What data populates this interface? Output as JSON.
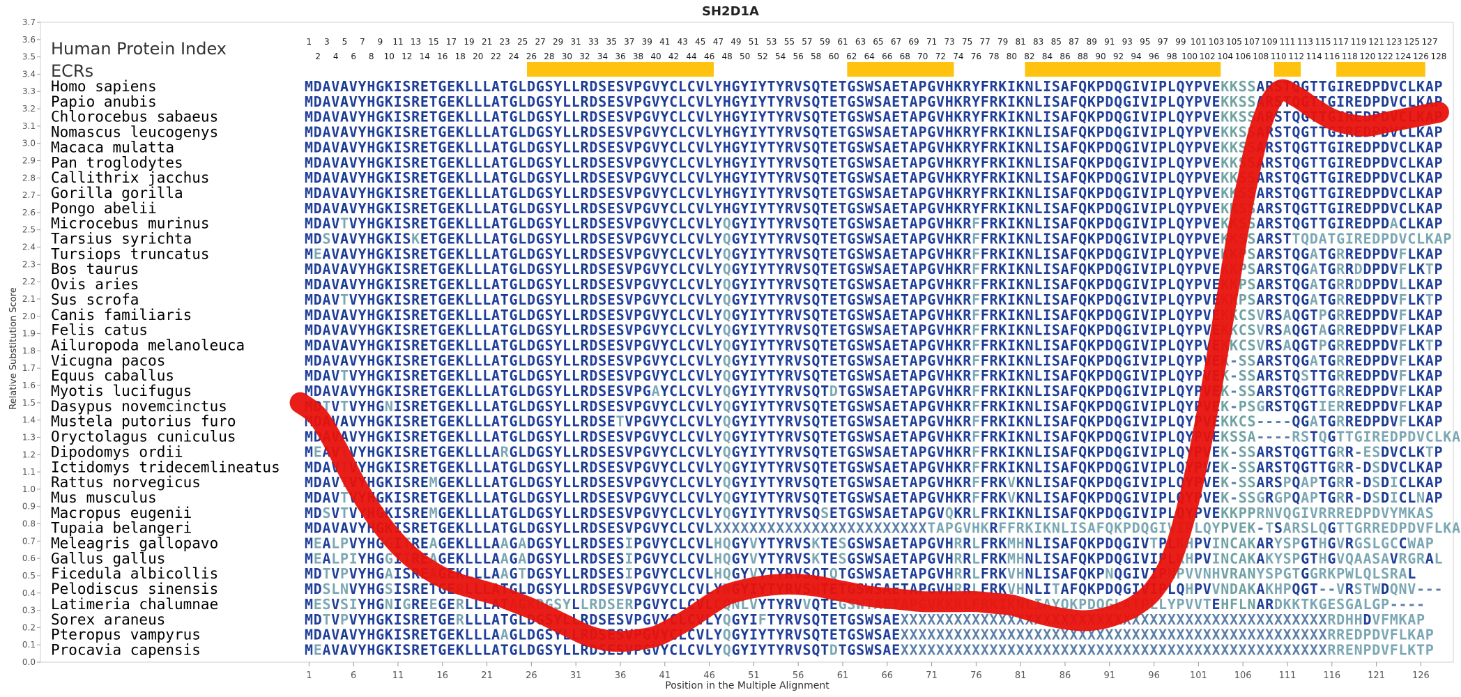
{
  "chart_data": {
    "type": "line",
    "title": "SH2D1A",
    "xlabel": "Position in the Multiple Alignment",
    "ylabel": "Relative Substitution Score",
    "xlim": [
      1,
      128
    ],
    "ylim": [
      0.0,
      3.7
    ],
    "y_ticks": [
      0.0,
      0.1,
      0.2,
      0.3,
      0.4,
      0.5,
      0.6,
      0.7,
      0.8,
      0.9,
      1.0,
      1.1,
      1.2,
      1.3,
      1.4,
      1.5,
      1.6,
      1.7,
      1.8,
      1.9,
      2.0,
      2.1,
      2.2,
      2.3,
      2.4,
      2.5,
      2.6,
      2.7,
      2.8,
      2.9,
      3.0,
      3.1,
      3.2,
      3.3,
      3.4,
      3.5,
      3.6,
      3.7
    ],
    "x_ticks": [
      1,
      6,
      11,
      16,
      21,
      26,
      31,
      36,
      41,
      46,
      51,
      56,
      61,
      66,
      71,
      76,
      81,
      86,
      91,
      96,
      101,
      106,
      111,
      116,
      121,
      126
    ],
    "human_index_label": "Human Protein Index",
    "ecr_label": "ECRs",
    "ecr_regions": [
      [
        26,
        46
      ],
      [
        62,
        73
      ],
      [
        82,
        103
      ],
      [
        110,
        112
      ],
      [
        117,
        126
      ]
    ],
    "series_color": "#e8120c",
    "curve": [
      {
        "x": 0,
        "y": 1.5
      },
      {
        "x": 2,
        "y": 1.42
      },
      {
        "x": 4,
        "y": 1.25
      },
      {
        "x": 6,
        "y": 1.05
      },
      {
        "x": 8,
        "y": 0.88
      },
      {
        "x": 10,
        "y": 0.74
      },
      {
        "x": 12,
        "y": 0.63
      },
      {
        "x": 14,
        "y": 0.55
      },
      {
        "x": 16,
        "y": 0.49
      },
      {
        "x": 18,
        "y": 0.45
      },
      {
        "x": 20,
        "y": 0.42
      },
      {
        "x": 22,
        "y": 0.39
      },
      {
        "x": 24,
        "y": 0.35
      },
      {
        "x": 26,
        "y": 0.31
      },
      {
        "x": 28,
        "y": 0.26
      },
      {
        "x": 30,
        "y": 0.21
      },
      {
        "x": 32,
        "y": 0.16
      },
      {
        "x": 34,
        "y": 0.13
      },
      {
        "x": 36,
        "y": 0.12
      },
      {
        "x": 38,
        "y": 0.13
      },
      {
        "x": 40,
        "y": 0.15
      },
      {
        "x": 42,
        "y": 0.2
      },
      {
        "x": 44,
        "y": 0.26
      },
      {
        "x": 46,
        "y": 0.33
      },
      {
        "x": 48,
        "y": 0.39
      },
      {
        "x": 50,
        "y": 0.42
      },
      {
        "x": 52,
        "y": 0.44
      },
      {
        "x": 54,
        "y": 0.45
      },
      {
        "x": 56,
        "y": 0.45
      },
      {
        "x": 58,
        "y": 0.44
      },
      {
        "x": 60,
        "y": 0.42
      },
      {
        "x": 62,
        "y": 0.4
      },
      {
        "x": 64,
        "y": 0.38
      },
      {
        "x": 66,
        "y": 0.37
      },
      {
        "x": 68,
        "y": 0.36
      },
      {
        "x": 70,
        "y": 0.35
      },
      {
        "x": 72,
        "y": 0.35
      },
      {
        "x": 74,
        "y": 0.35
      },
      {
        "x": 76,
        "y": 0.35
      },
      {
        "x": 78,
        "y": 0.34
      },
      {
        "x": 80,
        "y": 0.33
      },
      {
        "x": 82,
        "y": 0.3
      },
      {
        "x": 84,
        "y": 0.27
      },
      {
        "x": 86,
        "y": 0.25
      },
      {
        "x": 88,
        "y": 0.24
      },
      {
        "x": 90,
        "y": 0.25
      },
      {
        "x": 92,
        "y": 0.28
      },
      {
        "x": 94,
        "y": 0.33
      },
      {
        "x": 96,
        "y": 0.42
      },
      {
        "x": 98,
        "y": 0.6
      },
      {
        "x": 100,
        "y": 0.95
      },
      {
        "x": 102,
        "y": 1.45
      },
      {
        "x": 104,
        "y": 2.05
      },
      {
        "x": 106,
        "y": 2.65
      },
      {
        "x": 108,
        "y": 3.1
      },
      {
        "x": 110,
        "y": 3.3
      },
      {
        "x": 112,
        "y": 3.27
      },
      {
        "x": 114,
        "y": 3.2
      },
      {
        "x": 116,
        "y": 3.14
      },
      {
        "x": 118,
        "y": 3.11
      },
      {
        "x": 120,
        "y": 3.1
      },
      {
        "x": 122,
        "y": 3.12
      },
      {
        "x": 124,
        "y": 3.14
      },
      {
        "x": 126,
        "y": 3.16
      },
      {
        "x": 128,
        "y": 3.18
      }
    ],
    "alignment": [
      {
        "species": "Homo sapiens",
        "seq": "MDAVAVYHGKISRETGEKLLLATGLDGSYLLRDSESVPGVYCLCVLYHGYIYTYRVSQTETGSWSAETAPGVHKRYFRKIKNLISAFQKPDQGIVIPLQYPVEKKSSARSTQGTTGIREDPDVCLKAP"
      },
      {
        "species": "Papio anubis",
        "seq": "MDAVAVYHGKISRETGEKLLLATGLDGSYLLRDSESVPGVYCLCVLYHGYIYTYRVSQTETGSWSAETAPGVHKRYFRKIKNLISAFQKPDQGIVIPLQYPVEKKSSARSTQGTTGIREDPDVCLKAP"
      },
      {
        "species": "Chlorocebus sabaeus",
        "seq": "MDAVAVYHGKISRETGEKLLLATGLDGSYLLRDSESVPGVYCLCVLYHGYIYTYRVSQTETGSWSAETAPGVHKRYFRKIKNLISAFQKPDQGIVIPLQYPVEKKSSARSTQGTTGIREDPDVCLKAP"
      },
      {
        "species": "Nomascus leucogenys",
        "seq": "MDAVAVYHGKISRETGEKLLLATGLDGSYLLRDSESVPGVYCLCVLYHGYIYTYRVSQTETGSWSAETAPGVHKRYFRKIKNLISAFQKPDQGIVIPLQYPVEKKSSARSTQGTTGIREDPDVCLKAP"
      },
      {
        "species": "Macaca mulatta",
        "seq": "MDAVAVYHGKISRETGEKLLLATGLDGSYLLRDSESVPGVYCLCVLYHGYIYTYRVSQTETGSWSAETAPGVHKRYFRKIKNLISAFQKPDQGIVIPLQYPVEKKSSARSTQGTTGIREDPDVCLKAP"
      },
      {
        "species": "Pan troglodytes",
        "seq": "MDAVAVYHGKISRETGEKLLLATGLDGSYLLRDSESVPGVYCLCVLYHGYIYTYRVSQTETGSWSAETAPGVHKRYFRKIKNLISAFQKPDQGIVIPLQYPVEKKSSARSTQGTTGIREDPDVCLKAP"
      },
      {
        "species": "Callithrix jacchus",
        "seq": "MDAVAVYHGKISRETGEKLLLATGLDGSYLLRDSESVPGVYCLCVLYHGYIYTYRVSQTETGSWSAETAPGVHKRYFRKIKNLISAFQKPDQGIVIPLQYPVEKKSSARSTQGTTGIREDPDVCLKAP"
      },
      {
        "species": "Gorilla gorilla",
        "seq": "MDAVAVYHGKISRETGEKLLLATGLDGSYLLRDSESVPGVYCLCVLYHGYIYTYRVSQTETGSWSAETAPGVHKRYFRKIKNLISAFQKPDQGIVIPLQYPVEKKSSARSTQGTTGIREDPDVCLKAP"
      },
      {
        "species": "Pongo abelii",
        "seq": "MDAVAVYHGKISRETGEKLLLATGLDGSYLLRDSESVPGVYCLCVLYHGYIYTYRVSQTETGSWSAETAPGVHKRYFRKIKNLISAFQKPDQGIVIPLQYPVEKKSSARSTQGTTGIREDPDVCLKAP"
      },
      {
        "species": "Microcebus murinus",
        "seq": "MDAVTVYHGKISRETGEKLLLATGLDGSYLLRDSESVPGVYCLCVLYQGYIYTYRVSQTETGSWSAETAPGVHKRFFRKIKNLISAFQKPDQGIVIPLQYPVEKKSSARSTQGTTGIREDPDACLKAP"
      },
      {
        "species": "Tarsius syrichta",
        "seq": "MDSVAVYHGKISKETGEKLLLATGLDGSYLLRDSESVPGVYCLCVLYQGYIYTYRVSQTETGSWSAETAPGVHKRFFRKIKNLISAFQKPDQGIVIPLQYPVEKKSSARSTTQDATGIREDPDVCLKAP"
      },
      {
        "species": "Tursiops truncatus",
        "seq": "MEAVAVYHGKISRETGEKLLLATGLDGSYLLRDSESVPGVYCLCVLYQGYIYTYRVSQTETGSWSAETAPGVHKRFFRKIKNLISAFQKPDQGIVIPLQYPVEKKPSARSTQGATGRREDPDVFLKAP"
      },
      {
        "species": "Bos taurus",
        "seq": "MDAVAVYHGKISRETGEKLLLATGLDGSYLLRDSESVPGVYCLCVLYQGYIYTYRVSQTETGSWSAETAPGVHKRFFRKIKNLISAFQKPDQGIVIPLQYPVEKKPSARSTQGATGRRDDPDVFLKTP"
      },
      {
        "species": "Ovis aries",
        "seq": "MDAVAVYHGKISRETGEKLLLATGLDGSYLLRDSESVPGVYCLCVLYQGYIYTYRVSQTETGSWSAETAPGVHKRFFRKIKNLISAFQKPDQGIVIPLQYPVEKKPSARSTQGATGRRDDPDVLLKAP"
      },
      {
        "species": "Sus scrofa",
        "seq": "MDAVTVYHGKISRETGEKLLLATGLDGSYLLRDSESVPGVYCLCVLYQGYIYTYRVSQTETGSWSAETAPGVHKRFFRKIKNLISAFQKPDQGIVIPLQYPVEKKPSARSTQGATGRREDPDVFLKTP"
      },
      {
        "species": "Canis familiaris",
        "seq": "MDAVAVYHGKISRETGEKLLLATGLDGSYLLRDSESVPGVYCLCVLYQGYIYTYRVSQTETGSWSAETAPGVHKRFFRKIKNLISAFQKPDQGIVIPLQYPVEKKCSVRSAQGTPGRREDPDVFLKAP"
      },
      {
        "species": "Felis catus",
        "seq": "MDAVAVYHGKISRETGEKLLLATGLDGSYLLRDSESVPGVYCLCVLYQGYIYTYRVSQTETGSWSAETAPGVHKRFFRKIKNLISAFQKPDQGIVIPLQYPVEKKCSVRSAQGTAGRREDPDVFLKAP"
      },
      {
        "species": "Ailuropoda melanoleuca",
        "seq": "MDAVAVYHGKISRETGEKLLLATGLDGSYLLRDSESVPGVYCLCVLYQGYIYTYRVSQTETGSWSAETAPGVHKRFFRKIKNLISAFQKPDQGIVIPLQYPVEKKCSVRSAQGTPGRREDPDVFLKTP"
      },
      {
        "species": "Vicugna pacos",
        "seq": "MDAVAVYHGKISRETGEKLLLATGLDGSYLLRDSESVPGVYCLCVLYQGYIYTYRVSQTETGSWSAETAPGVHKRFFRKIKNLISAFQKPDQGIVIPLQYPVEK-SSARSTQGATGRREDPDVFLKAP"
      },
      {
        "species": "Equus caballus",
        "seq": "MDAVTVYHGKISRETGEKLLLATGLDGSYLLRDSESVPGVYCLCVLYQGYIYTYRVSQTETGSWSAETAPGVHKRFFRKIKNLISAFQKPDQGIVIPLQYPVEK-SSARSTQSTTGRREDPDVFLKAP"
      },
      {
        "species": "Myotis lucifugus",
        "seq": "MDAVAVYHGKISRETGEKLLLATGLDGSYLLRDSESVPGAYCLCVLYQGYIYTYRVSQTDTGSWSAETAPGVHKRFFRKIKNLISAFQKPDQGIVIPLQYPVEK-SSARSTQGTTGRREDPDVFLKAP"
      },
      {
        "species": "Dasypus novemcinctus",
        "seq": "MDTVTVYHGNISRETGEKLLLATGLDGSYLLRDSESVPGVYCLCVLYQGYIYTYRVSQTETGSWSAETAPGVHKRFFRKIKNLISAFQKPDQGIVIPLQYPVEK-PSGRSTQGTIERREDPDVFLKAP"
      },
      {
        "species": "Mustela putorius furo",
        "seq": "MDAVAVYHGKISRETGEKLLLATGLDGSYLLRDSETVPGVYCLCVLYQGYIYTYRVSQTETGSWSAETAPGVHKRFFRKIKNLISAFQKPDQGIVIPLQYPVEKKCS----QGATGRREDPDVFLKAP"
      },
      {
        "species": "Oryctolagus cuniculus",
        "seq": "MDAVAVYHGKISRETGEKLLLATGLDGSYLLRDSESVPGVYCLCVLYQGYIYTYRVSQTETGSWSAETAPGVHKRFFRKIKNLISAFQKPDQGIVIPLQYPVEKSSA----RSTQGTTGIREDPDVCLKAP"
      },
      {
        "species": "Dipodomys ordii",
        "seq": "MEAVTVYHGKISRETGEKLLLARGLDGSYLLRDSESVPGVYCLCVLYQGYIYTYRVSQTETGSWSAETAPGVHKRFFRKIKNLISAFQKPDQGIVIPLQYPVEK-SSARSTQGTTGRR-ESDVCLKTP"
      },
      {
        "species": "Ictidomys tridecemlineatus",
        "seq": "MDAVTVYHGKISRETGEKLLLATGLDGSYLLRDSESVPGVYCLCVLYQGYIYTYRVSQTETGSWSAETAPGVHKRFFRKIKNLISAFQKPDQGIVIPLQYPVEK-SSARSTQGTTGRR-DSDVCLKAP"
      },
      {
        "species": "Rattus norvegicus",
        "seq": "MDAVTVYHGKISREMGEKLLLATGLDGSYLLRDSESVPGVYCLCVLYQGYIYTYRVSQTETGSWSAETAPGVHKRFFRKVKNLISAFQKPDQGIVIPLQYPVEK-SSARSPQAPTGRR-DSDICLKAP"
      },
      {
        "species": "Mus musculus",
        "seq": "MDAVTVYHGKISRETGEKLLLATGLDGSYLLRDSESVPGVYCLCVLYQGYIYTYRVSQTETGSWSAETAPGVHKRFFRKVKNLISAFQKPDQGIVIPLQYPVEK-SSGRGPQAPTGRR-DSDICLNAP"
      },
      {
        "species": "Macropus eugenii",
        "seq": "MDSVTVYHGKISREMGEKLLLATGLDGSYLLRDSESVPGVYCLCVLYQGYIYTYRVSQSETGSWSAETAPGVQKRLFRKIKNLISAFQKPDQGIVIPLQYPVEKKPPRNVQGIVRRREDPDVYMKAS"
      },
      {
        "species": "Tupaia belangeri",
        "seq": "MDAVAVYHGKISRETGEKLLLATGLDGSYLLRDSESVPGVYCLCVLXXXXXXXXXXXXXXXXXXXXXXXXTAPGVHKRFFRKIKNLISAFQKPDQGIVIPLQYPVEK-TSARSLQGTTGRREDPDVFLKAP"
      },
      {
        "species": "Meleagris gallopavo",
        "seq": "MEALPVYHGGITREAGEKLLLAAGADGSYLLRDSESIPGVYCLCVLHQGYVYTYRVSKTESGSWSAETAPGVHRRLFRKMHNLISAFQKPDQGIVTPLKHPVINCAKARYSPGTHGVRGSLGCCWAP"
      },
      {
        "species": "Gallus gallus",
        "seq": "MEALPIYHGGITREAGEKLLLAAGADGSYLLRDSESIPGVYCLCVLHQGYVYTYRVSKTESGSWSAETAPGVHRRLFRKMHNLISAFQKPDQGIVIPLKHPVINCAKAKYSPGTHGVQAASAVRGRAL"
      },
      {
        "species": "Ficedula albicollis",
        "seq": "MDTVPVYHGAISREAGEKLLLAAGTDGSYLLRDSESIPGVYCLCVLHQGYVYTYRVSQTQTGSWSAETAPGVHRRLFRKVHNLISAFQKPNQGIVIPNPVVNHVRANYSPGTGGRKPWLQLSRAL"
      },
      {
        "species": "Pelodiscus sinensis",
        "seq": "MDSLNVYHGSISRETGERLLLATGLDGSYLLRDSESVPGVYCLCVLYNGYIYTYRVSHTETGSWSAETAPGVHRRLFRKVHNLITAFQKPDQGIVIPLQHPVVNDAKAKHPQGT--VRSTWDQNV---"
      },
      {
        "species": "Latimeria chalumnae",
        "seq": "MESVSIYHGNIGREEGERLLLATAGKDGSYLLRDSERPGVYCLCVLCQNLVYTYRVVQTEGSWTAETAPGVKKRLFRKIKNLIAYQKPDQGLATPLLYPVVTEHFLNARDKKTKGESGALGP----"
      },
      {
        "species": "Sorex araneus",
        "seq": "MDTVPVYHGKISRETGERLLLATGLDGSYLLRDSESVPGVYCLCVLYQGYIFTYRVSQTETGSWSAEXXXXXXXXXXXXXXXXXXXXXXXXXXXXXXXXXXXXXXXXXXXXXXXXRDHHDVFMKAP"
      },
      {
        "species": "Pteropus vampyrus",
        "seq": "MDAVAVYHGKISRETGEKLLLAAGLDGSYLLRDSESVPGVYCLCVLYQGYIYTYRVSQTETGSWSAEXXXXXXXXXXXXXXXXXXXXXXXXXXXXXXXXXXXXXXXXXXXXXXXXRREDPDVFLKAP"
      },
      {
        "species": "Procavia capensis",
        "seq": "MEAVAVYHGKISRETGEKLLLATGLDGSYLLRDSESVPGVYCLCVLYQGYIYTYRVSQTDTGSWSAEXXXXXXXXXXXXXXXXXXXXXXXXXXXXXXXXXXXXXXXXXXXXXXXXRRENPDVFLKTP"
      }
    ]
  }
}
